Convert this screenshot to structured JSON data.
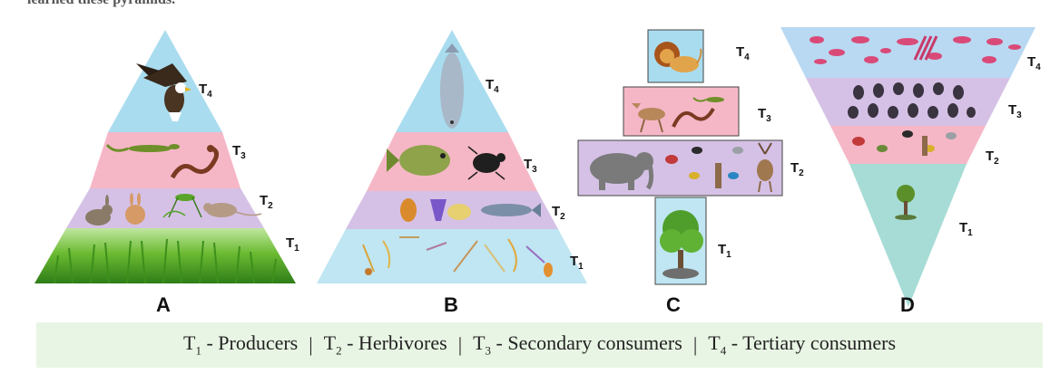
{
  "header_fragment": "learned these pyramids.",
  "pyramids": [
    {
      "letter": "A",
      "levels": [
        {
          "label": "T",
          "sub": "4",
          "contents": "eagle"
        },
        {
          "label": "T",
          "sub": "3",
          "contents": "lizard and snake"
        },
        {
          "label": "T",
          "sub": "2",
          "contents": "rabbits, grasshopper, mouse"
        },
        {
          "label": "T",
          "sub": "1",
          "contents": "grass"
        }
      ]
    },
    {
      "letter": "B",
      "levels": [
        {
          "label": "T",
          "sub": "4",
          "contents": "large fish"
        },
        {
          "label": "T",
          "sub": "3",
          "contents": "fish and water beetle"
        },
        {
          "label": "T",
          "sub": "2",
          "contents": "zooplankton and small fish"
        },
        {
          "label": "T",
          "sub": "1",
          "contents": "phytoplankton"
        }
      ]
    },
    {
      "letter": "C",
      "levels": [
        {
          "label": "T",
          "sub": "4",
          "contents": "lion"
        },
        {
          "label": "T",
          "sub": "3",
          "contents": "jackal, snake, lizard"
        },
        {
          "label": "T",
          "sub": "2",
          "contents": "elephant, birds, deer"
        },
        {
          "label": "T",
          "sub": "1",
          "contents": "tree"
        }
      ]
    },
    {
      "letter": "D",
      "levels": [
        {
          "label": "T",
          "sub": "4",
          "contents": "parasites"
        },
        {
          "label": "T",
          "sub": "3",
          "contents": "insects"
        },
        {
          "label": "T",
          "sub": "2",
          "contents": "birds"
        },
        {
          "label": "T",
          "sub": "1",
          "contents": "tree"
        }
      ]
    }
  ],
  "legend": [
    {
      "t": "T",
      "sub": "1",
      "text": " - Producers"
    },
    {
      "t": "T",
      "sub": "2",
      "text": " - Herbivores"
    },
    {
      "t": "T",
      "sub": "3",
      "text": " - Secondary consumers"
    },
    {
      "t": "T",
      "sub": "4",
      "text": " - Tertiary consumers"
    }
  ],
  "legend_separator": "|",
  "colors": {
    "t4": "#a9dcef",
    "t3": "#f5b7c6",
    "t2": "#d5c1e6",
    "t1_grass": "#5fae2e",
    "t1_water": "#bfe6f2",
    "t1_green": "#a7dcd6",
    "legend_bg": "#e9f5e4"
  }
}
